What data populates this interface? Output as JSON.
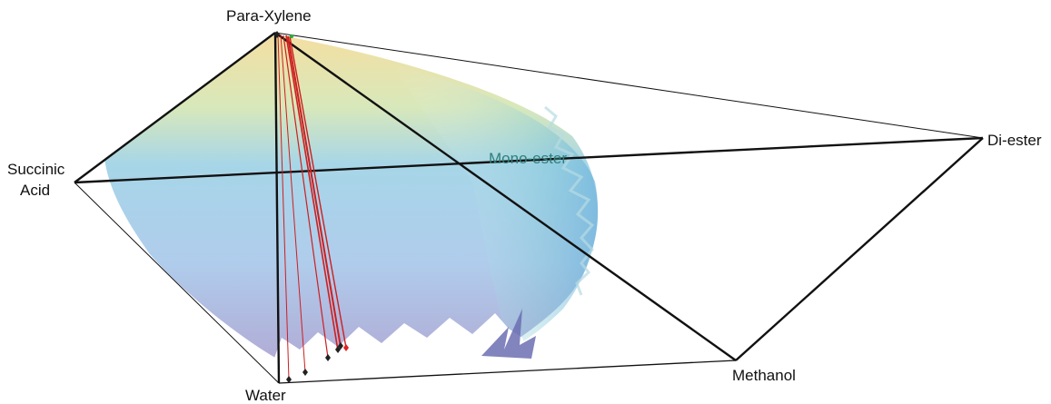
{
  "diagram": {
    "vertices": {
      "para_xylene": "Para-Xylene",
      "succinic_acid_line1": "Succinic",
      "succinic_acid_line2": "Acid",
      "di_ester": "Di-ester",
      "water": "Water",
      "methanol": "Methanol"
    },
    "surface_label": "Mono-ester",
    "colors": {
      "edge": "#111111",
      "tie_line": "#cc1f1f",
      "marker": "#222222",
      "marker_highlight": "#dd2222",
      "surface_top": "#f3dc9a",
      "surface_mid": "#9fd2e6",
      "surface_bottom": "#a9a6d3"
    }
  }
}
